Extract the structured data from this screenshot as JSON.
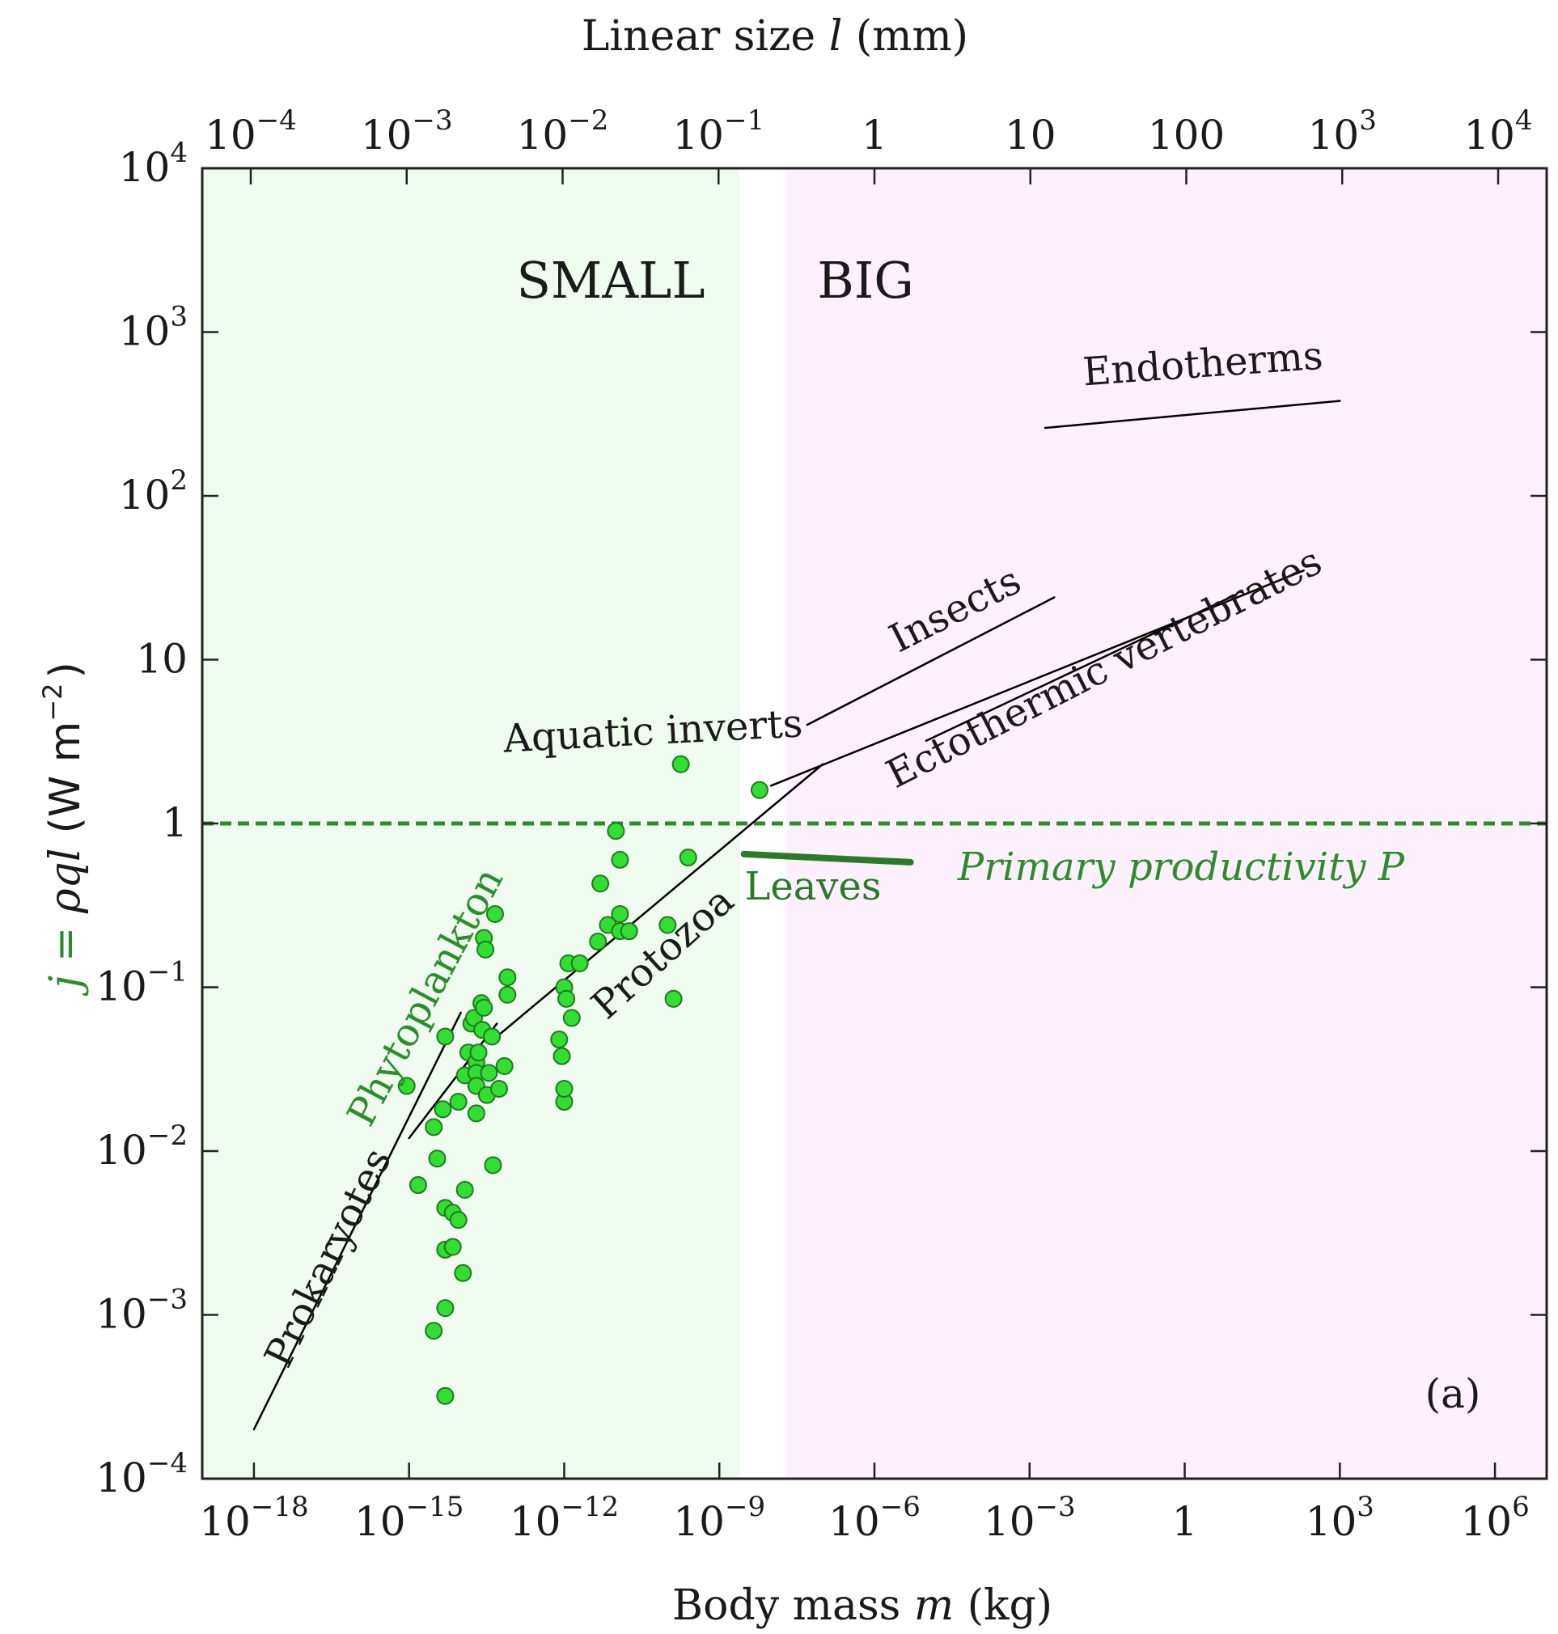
{
  "chart_data": {
    "type": "scatter",
    "top_axis_title": "Linear size l (mm)",
    "top_axis_title_parts": [
      "Linear size ",
      "l",
      " (mm)"
    ],
    "top_ticks": [
      {
        "base": "10",
        "exp": "−4",
        "value_mm": 0.0001
      },
      {
        "base": "10",
        "exp": "−3",
        "value_mm": 0.001
      },
      {
        "base": "10",
        "exp": "−2",
        "value_mm": 0.01
      },
      {
        "base": "10",
        "exp": "−1",
        "value_mm": 0.1
      },
      {
        "base": "1",
        "exp": "",
        "value_mm": 1
      },
      {
        "base": "10",
        "exp": "",
        "value_mm": 10
      },
      {
        "base": "100",
        "exp": "",
        "value_mm": 100
      },
      {
        "base": "10",
        "exp": "3",
        "value_mm": 1000
      },
      {
        "base": "10",
        "exp": "4",
        "value_mm": 10000
      }
    ],
    "xlabel": "Body mass m (kg)",
    "xlabel_parts": [
      "Body mass ",
      "m",
      " (kg)"
    ],
    "x_scale": "log",
    "xlim": [
      1e-19,
      10000000.0
    ],
    "x_ticks": [
      {
        "base": "10",
        "exp": "−18",
        "value": 1e-18
      },
      {
        "base": "10",
        "exp": "−15",
        "value": 1e-15
      },
      {
        "base": "10",
        "exp": "−12",
        "value": 1e-12
      },
      {
        "base": "10",
        "exp": "−9",
        "value": 1e-09
      },
      {
        "base": "10",
        "exp": "−6",
        "value": 1e-06
      },
      {
        "base": "10",
        "exp": "−3",
        "value": 0.001
      },
      {
        "base": "1",
        "exp": "",
        "value": 1
      },
      {
        "base": "10",
        "exp": "3",
        "value": 1000.0
      },
      {
        "base": "10",
        "exp": "6",
        "value": 1000000.0
      }
    ],
    "ylabel": "j = ρql (W m−2)",
    "ylabel_parts": {
      "j": "j",
      "eq": " = ",
      "rho": "ρ",
      "ql": "ql",
      "units": "(W m",
      "units_exp": "−2",
      "units_close": ")"
    },
    "y_scale": "log",
    "ylim": [
      0.0001,
      10000
    ],
    "y_ticks": [
      {
        "base": "10",
        "exp": "4",
        "value": 10000
      },
      {
        "base": "10",
        "exp": "3",
        "value": 1000
      },
      {
        "base": "10",
        "exp": "2",
        "value": 100
      },
      {
        "base": "10",
        "exp": "",
        "value": 10
      },
      {
        "base": "1",
        "exp": "",
        "value": 1
      },
      {
        "base": "10",
        "exp": "−1",
        "value": 0.1
      },
      {
        "base": "10",
        "exp": "−2",
        "value": 0.01
      },
      {
        "base": "10",
        "exp": "−3",
        "value": 0.001
      },
      {
        "base": "10",
        "exp": "−4",
        "value": 0.0001
      }
    ],
    "grid": false,
    "regions": [
      {
        "label": "SMALL",
        "x_range": [
          1e-19,
          2.5e-09
        ],
        "color": "#eefbee"
      },
      {
        "label": "BIG",
        "x_range": [
          2e-08,
          10000000.0
        ],
        "color": "#fdf0fd"
      }
    ],
    "reference_line": {
      "label": "Primary productivity P",
      "y": 1,
      "style": "dashed",
      "color": "#2e8b2e"
    },
    "fit_lines": [
      {
        "label": "Endotherms",
        "color": "#000000",
        "points": [
          [
            0.002,
            260
          ],
          [
            1000,
            380
          ]
        ]
      },
      {
        "label": "Insects",
        "color": "#000000",
        "points": [
          [
            5e-08,
            4.0
          ],
          [
            0.003,
            24
          ]
        ]
      },
      {
        "label": "Ectothermic vertebrates",
        "color": "#000000",
        "points": [
          [
            1e-08,
            1.7
          ],
          [
            200,
            35
          ]
        ]
      },
      {
        "label": "Ectothermic vertebrates",
        "color": "#000000",
        "points": [
          [
            1e-05,
            3.2
          ],
          [
            10,
            25
          ]
        ]
      },
      {
        "label": "Aquatic inverts",
        "color": "#000000",
        "points": [
          [
            5e-14,
            0.05
          ],
          [
            1e-07,
            2.3
          ]
        ]
      },
      {
        "label": "Protozoa",
        "color": "#000000",
        "points": [
          [
            1e-15,
            0.012
          ],
          [
            5e-14,
            0.06
          ]
        ]
      },
      {
        "label": "Prokaryotes",
        "color": "#000000",
        "points": [
          [
            1e-18,
            0.0002
          ],
          [
            1e-14,
            0.07
          ]
        ]
      },
      {
        "label": "Leaves",
        "color": "#2a7a2a",
        "points": [
          [
            3e-09,
            0.65
          ],
          [
            5e-06,
            0.58
          ]
        ]
      }
    ],
    "series": [
      {
        "name": "Phytoplankton",
        "color": "#33dd33",
        "points": [
          [
            9e-16,
            0.025
          ],
          [
            1.5e-15,
            0.0062
          ],
          [
            3e-15,
            0.014
          ],
          [
            3.5e-15,
            0.009
          ],
          [
            4.5e-15,
            0.018
          ],
          [
            5e-15,
            0.05
          ],
          [
            5e-15,
            0.0045
          ],
          [
            5e-15,
            0.0025
          ],
          [
            5e-15,
            0.0011
          ],
          [
            3e-15,
            0.0008
          ],
          [
            5e-15,
            0.00032
          ],
          [
            7e-15,
            0.0026
          ],
          [
            7e-15,
            0.0042
          ],
          [
            9e-15,
            0.0038
          ],
          [
            1.1e-14,
            0.0018
          ],
          [
            1.2e-14,
            0.0058
          ],
          [
            9e-15,
            0.02
          ],
          [
            1.2e-14,
            0.029
          ],
          [
            1.4e-14,
            0.04
          ],
          [
            1.6e-14,
            0.06
          ],
          [
            1.8e-14,
            0.065
          ],
          [
            2e-14,
            0.035
          ],
          [
            2e-14,
            0.03
          ],
          [
            2e-14,
            0.025
          ],
          [
            2e-14,
            0.017
          ],
          [
            2.2e-14,
            0.04
          ],
          [
            2.5e-14,
            0.08
          ],
          [
            2.6e-14,
            0.055
          ],
          [
            2.8e-14,
            0.075
          ],
          [
            2.8e-14,
            0.2
          ],
          [
            3e-14,
            0.17
          ],
          [
            3.2e-14,
            0.022
          ],
          [
            3.5e-14,
            0.03
          ],
          [
            4e-14,
            0.05
          ],
          [
            4.2e-14,
            0.0082
          ],
          [
            4.6e-14,
            0.28
          ],
          [
            5.5e-14,
            0.024
          ],
          [
            7e-14,
            0.033
          ],
          [
            8e-14,
            0.09
          ],
          [
            8e-14,
            0.115
          ],
          [
            1e-12,
            0.02
          ],
          [
            1e-12,
            0.024
          ],
          [
            9e-13,
            0.038
          ],
          [
            8e-13,
            0.048
          ],
          [
            1e-12,
            0.1
          ],
          [
            1.1e-12,
            0.085
          ],
          [
            1.2e-12,
            0.14
          ],
          [
            1.4e-12,
            0.065
          ],
          [
            2e-12,
            0.14
          ],
          [
            4.5e-12,
            0.19
          ],
          [
            5e-12,
            0.43
          ],
          [
            7e-12,
            0.24
          ],
          [
            1e-11,
            0.9
          ],
          [
            1.2e-11,
            0.6
          ],
          [
            1.2e-11,
            0.28
          ],
          [
            1.2e-11,
            0.22
          ],
          [
            1.8e-11,
            0.22
          ],
          [
            1e-10,
            0.24
          ],
          [
            1.3e-10,
            0.085
          ],
          [
            1.8e-10,
            2.3
          ],
          [
            2.5e-10,
            0.62
          ],
          [
            6e-09,
            1.6
          ]
        ]
      }
    ],
    "labels": {
      "small": "SMALL",
      "big": "BIG",
      "endotherms": "Endotherms",
      "insects": "Insects",
      "ecto": "Ectothermic vertebrates",
      "aquatic": "Aquatic inverts",
      "phyto": "Phytoplankton",
      "protozoa": "Protozoa",
      "prokaryotes": "Prokaryotes",
      "leaves": "Leaves",
      "productivity": "Primary productivity P",
      "panel": "(a)"
    }
  }
}
